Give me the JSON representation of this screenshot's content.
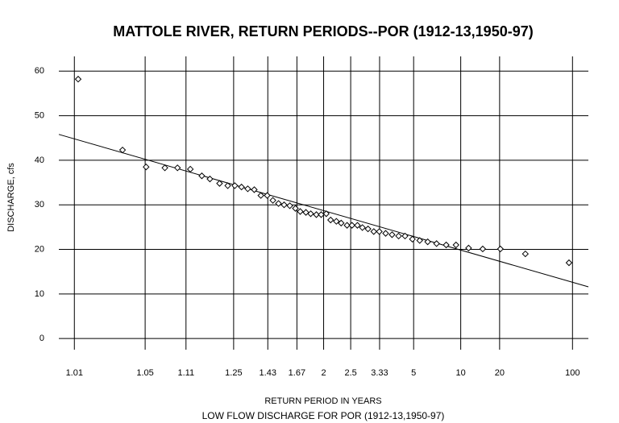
{
  "chart_data": {
    "type": "scatter",
    "title": "MATTOLE RIVER, RETURN PERIODS--POR (1912-13,1950-97)",
    "x_label": "RETURN PERIOD IN YEARS",
    "subtitle": "LOW FLOW DISCHARGE FOR POR (1912-13,1950-97)",
    "y_label": "DISCHARGE, cfs",
    "xscale": "normal-probability",
    "grid": true,
    "color": "#000000",
    "xlim": [
      1.0067,
      150
    ],
    "ylim": [
      -2.5,
      63.3
    ],
    "xticks": [
      1.01,
      1.05,
      1.11,
      1.25,
      1.43,
      1.67,
      2,
      2.5,
      3.33,
      5,
      10,
      20,
      100
    ],
    "yticks": [
      0,
      10,
      20,
      30,
      40,
      50,
      60
    ],
    "x": [
      1.011,
      1.031,
      1.051,
      1.074,
      1.094,
      1.119,
      1.146,
      1.168,
      1.198,
      1.227,
      1.255,
      1.284,
      1.314,
      1.348,
      1.386,
      1.426,
      1.465,
      1.507,
      1.552,
      1.602,
      1.655,
      1.704,
      1.767,
      1.824,
      1.897,
      1.964,
      2.04,
      2.11,
      2.21,
      2.3,
      2.42,
      2.53,
      2.66,
      2.79,
      2.95,
      3.13,
      3.32,
      3.56,
      3.83,
      4.14,
      4.48,
      4.92,
      5.42,
      6.05,
      6.87,
      7.94,
      9.26,
      11.4,
      14.6,
      20.3,
      33.7,
      91.7
    ],
    "values": [
      58.2,
      42.3,
      38.5,
      38.3,
      38.3,
      38,
      36.5,
      35.8,
      34.8,
      34.3,
      34.3,
      34,
      33.6,
      33.4,
      32.1,
      32.1,
      31,
      30.3,
      30,
      29.8,
      29.2,
      28.5,
      28.3,
      28,
      27.8,
      27.8,
      28,
      26.6,
      26.3,
      25.9,
      25.4,
      25.4,
      25.4,
      24.9,
      24.6,
      24,
      24,
      23.6,
      23.3,
      23,
      23,
      22.3,
      22,
      21.7,
      21.3,
      21,
      21,
      20.3,
      20.1,
      20.1,
      19,
      17
    ],
    "trend": {
      "x": [
        1.0067,
        150
      ],
      "values": [
        45.8,
        11.6
      ]
    }
  }
}
